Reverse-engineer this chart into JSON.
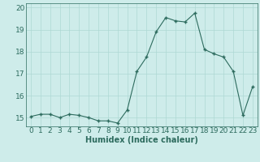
{
  "xlabel": "Humidex (Indice chaleur)",
  "x": [
    0,
    1,
    2,
    3,
    4,
    5,
    6,
    7,
    8,
    9,
    10,
    11,
    12,
    13,
    14,
    15,
    16,
    17,
    18,
    19,
    20,
    21,
    22,
    23
  ],
  "y": [
    15.05,
    15.15,
    15.15,
    15.0,
    15.15,
    15.1,
    15.0,
    14.85,
    14.85,
    14.75,
    15.35,
    17.1,
    17.75,
    18.9,
    19.55,
    19.4,
    19.35,
    19.75,
    18.1,
    17.9,
    17.75,
    17.1,
    15.1,
    16.4
  ],
  "ylim": [
    14.6,
    20.2
  ],
  "yticks": [
    15,
    16,
    17,
    18,
    19,
    20
  ],
  "xticks": [
    0,
    1,
    2,
    3,
    4,
    5,
    6,
    7,
    8,
    9,
    10,
    11,
    12,
    13,
    14,
    15,
    16,
    17,
    18,
    19,
    20,
    21,
    22,
    23
  ],
  "line_color": "#2d6b5e",
  "marker_color": "#2d6b5e",
  "bg_color": "#ceecea",
  "grid_color": "#aed8d4",
  "tick_color": "#2d6b5e",
  "xlabel_fontsize": 7,
  "tick_fontsize": 6.5
}
